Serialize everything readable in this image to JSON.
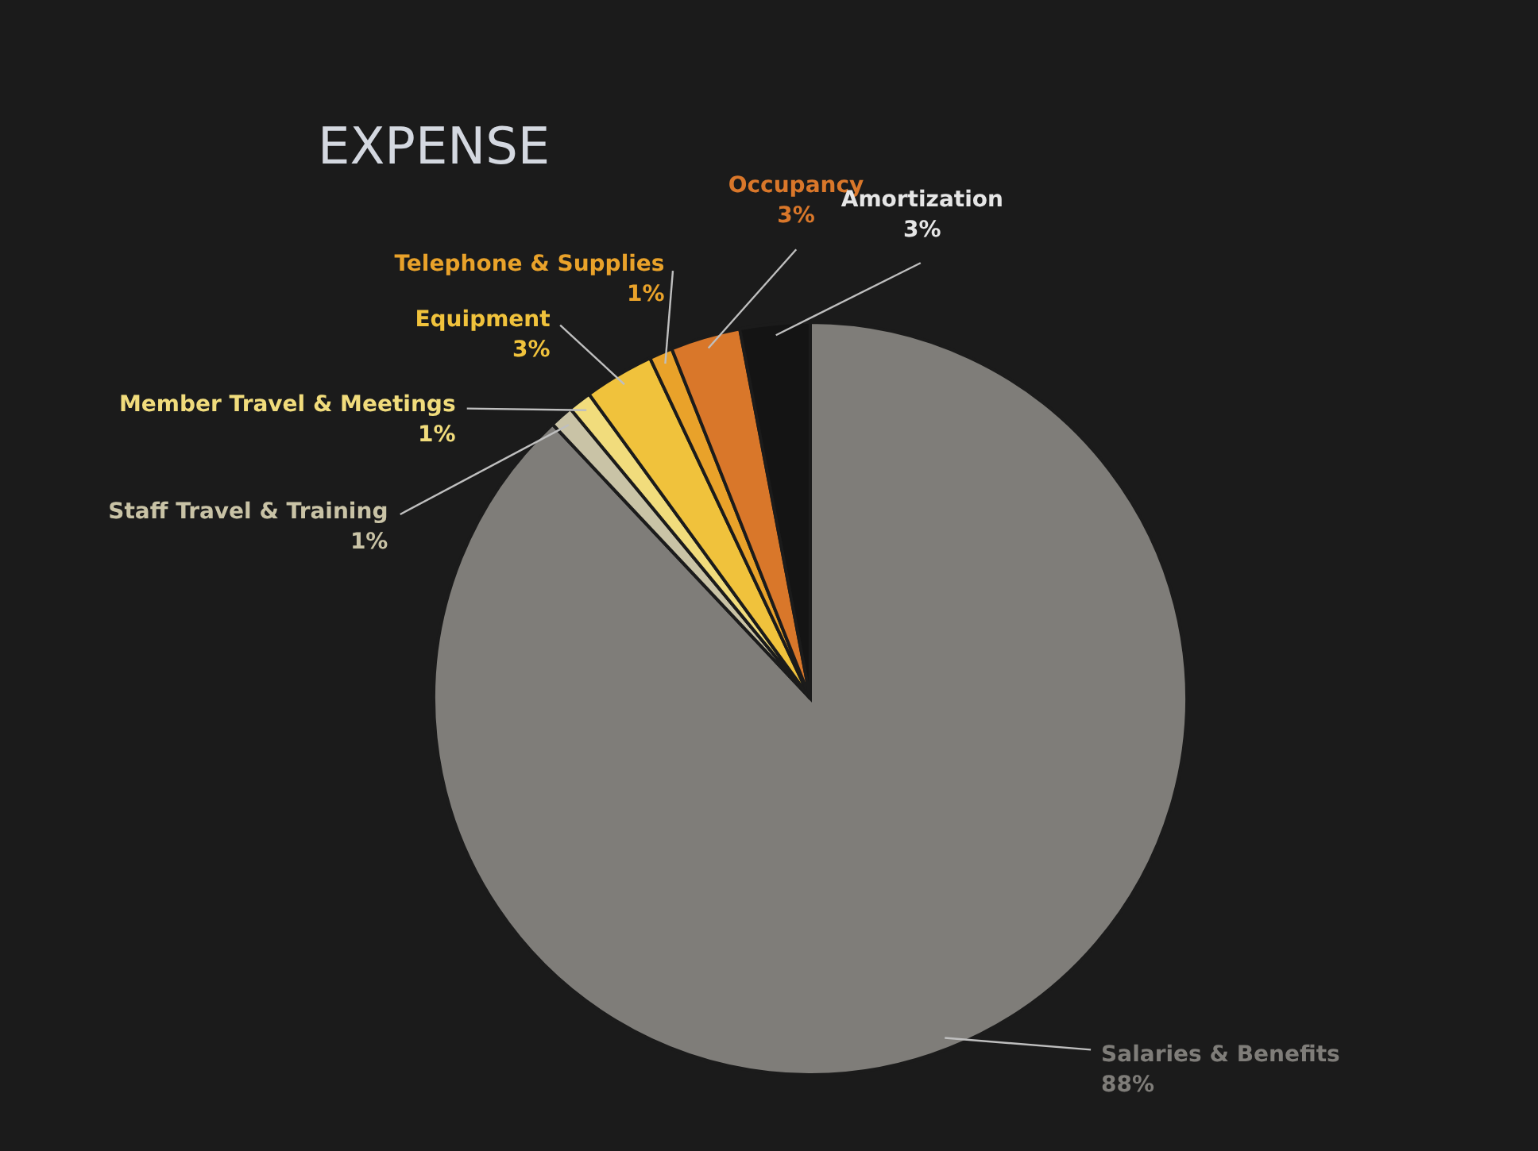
{
  "chart_data": {
    "type": "pie",
    "title": "EXPENSE",
    "categories": [
      "Salaries & Benefits",
      "Staff Travel & Training",
      "Member Travel & Meetings",
      "Equipment",
      "Telephone & Supplies",
      "Occupancy",
      "Amortization"
    ],
    "values": [
      88,
      1,
      1,
      3,
      1,
      3,
      3
    ],
    "value_labels": [
      "88%",
      "1%",
      "1%",
      "3%",
      "1%",
      "3%",
      "3%"
    ],
    "colors": [
      "#7f7d79",
      "#c9c3a6",
      "#f1dc7c",
      "#f0c23c",
      "#e9a22a",
      "#d9772a",
      "#141414"
    ]
  }
}
